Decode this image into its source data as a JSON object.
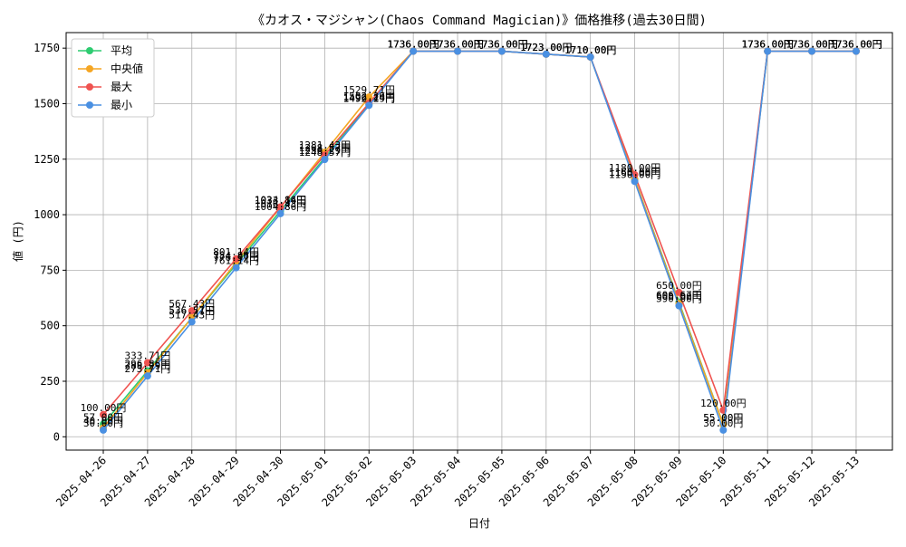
{
  "chart_data": {
    "type": "line",
    "title": "《カオス・マジシャン(Chaos Command Magician)》価格推移(過去30日間)",
    "xlabel": "日付",
    "ylabel": "値 (円)",
    "ylim": [
      -60,
      1820
    ],
    "yticks": [
      0,
      250,
      500,
      750,
      1000,
      1250,
      1500,
      1750
    ],
    "grid": true,
    "legend_position": "top-left",
    "categories": [
      "2025-04-26",
      "2025-04-27",
      "2025-04-28",
      "2025-04-29",
      "2025-04-30",
      "2025-05-01",
      "2025-05-02",
      "2025-05-03",
      "2025-05-04",
      "2025-05-05",
      "2025-05-06",
      "2025-05-07",
      "2025-05-08",
      "2025-05-09",
      "2025-05-10",
      "2025-05-11",
      "2025-05-12",
      "2025-05-13"
    ],
    "value_suffix": "円",
    "series": [
      {
        "name": "平均",
        "color": "#2ecc71",
        "values": [
          57.0,
          296.86,
          536.71,
          776.57,
          1016.43,
          1256.29,
          1496.14,
          1736.0,
          1736.0,
          1736.0,
          1723.0,
          1710.0,
          1160.0,
          606.67,
          55.0,
          1736.0,
          1736.0,
          1736.0
        ]
      },
      {
        "name": "中央値",
        "color": "#f5a623",
        "values": [
          40.0,
          288.29,
          536.57,
          784.86,
          1033.14,
          1281.43,
          1529.71,
          1736.0,
          1736.0,
          1736.0,
          1723.0,
          1710.0,
          1160.0,
          600.0,
          55.0,
          1736.0,
          1736.0,
          1736.0
        ]
      },
      {
        "name": "最大",
        "color": "#ef5350",
        "values": [
          100.0,
          333.71,
          567.43,
          801.14,
          1034.86,
          1268.57,
          1502.29,
          1736.0,
          1736.0,
          1736.0,
          1723.0,
          1710.0,
          1180.0,
          650.0,
          120.0,
          1736.0,
          1736.0,
          1736.0
        ]
      },
      {
        "name": "最小",
        "color": "#4a90e2",
        "values": [
          30.0,
          273.71,
          517.43,
          761.14,
          1004.86,
          1248.57,
          1492.29,
          1736.0,
          1736.0,
          1736.0,
          1723.0,
          1710.0,
          1150.0,
          590.0,
          30.0,
          1736.0,
          1736.0,
          1736.0
        ]
      }
    ]
  }
}
